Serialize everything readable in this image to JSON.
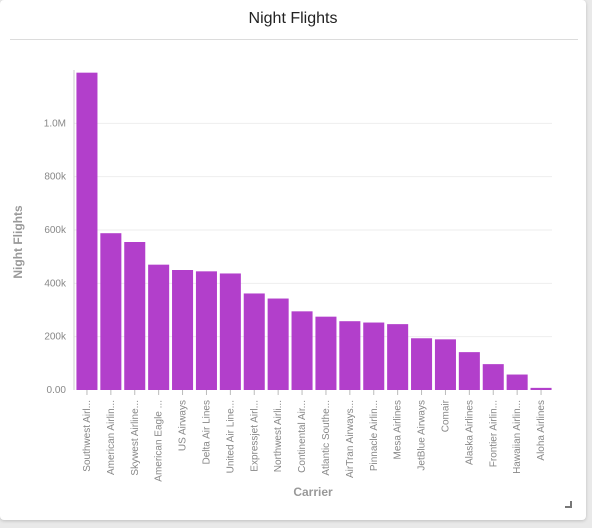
{
  "panel": {
    "title": "Night Flights"
  },
  "chart_data": {
    "type": "bar",
    "title": "Night Flights",
    "xlabel": "Carrier",
    "ylabel": "Night Flights",
    "ylim": [
      0,
      1200000
    ],
    "yticks": [
      0,
      200000,
      400000,
      600000,
      800000,
      1000000
    ],
    "ytick_labels": [
      "0.00",
      "200k",
      "400k",
      "600k",
      "800k",
      "1.0M"
    ],
    "bar_color": "#b23fcb",
    "grid": true,
    "categories": [
      "Southwest Airl...",
      "American Airlin...",
      "Skywest Airline...",
      "American Eagle ...",
      "US Airways",
      "Delta Air Lines",
      "United Air Line...",
      "Expressjet Airl...",
      "Northwest Airli...",
      "Continental Air...",
      "Atlantic Southe...",
      "AirTran Airways...",
      "Pinnacle Airlin...",
      "Mesa Airlines",
      "JetBlue Airways",
      "Comair",
      "Alaska Airlines",
      "Frontier Airlin...",
      "Hawaiian Airlin...",
      "Aloha Airlines"
    ],
    "values": [
      1190000,
      588000,
      555000,
      470000,
      450000,
      445000,
      437000,
      362000,
      343000,
      295000,
      275000,
      258000,
      253000,
      247000,
      194000,
      190000,
      142000,
      97000,
      58000,
      8000
    ]
  }
}
